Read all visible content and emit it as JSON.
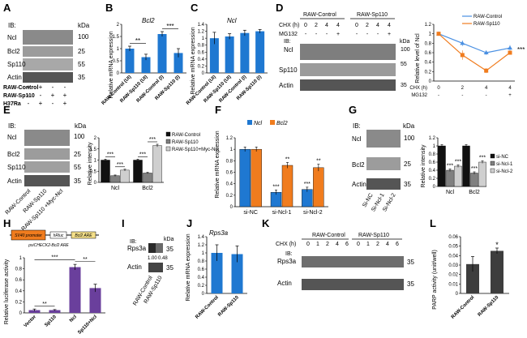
{
  "panels": {
    "A": {
      "letter": "A",
      "ib": "IB:",
      "kda": "kDa",
      "blots": [
        "Ncl",
        "Bcl2",
        "Sp110",
        "Actin"
      ],
      "markers": [
        "100",
        "25",
        "55",
        "35"
      ],
      "rows": [
        "RAW-Control",
        "RAW-Sp110",
        "H37Ra"
      ],
      "signs": [
        [
          "+",
          "+",
          "-",
          "-"
        ],
        [
          "-",
          "-",
          "+",
          "+"
        ],
        [
          "-",
          "+",
          "-",
          "+"
        ]
      ]
    },
    "B": {
      "letter": "B",
      "gene": "Bcl2",
      "ylabel": "Relative mRNA expression",
      "sig": [
        "**",
        "***"
      ]
    },
    "C": {
      "letter": "C",
      "gene": "Ncl",
      "ylabel": "Relative mRNA expression"
    },
    "D": {
      "letter": "D",
      "groups": [
        "RAW-Control",
        "RAW-Sp110"
      ],
      "chx_label": "CHX (h)",
      "chx": [
        "0",
        "2",
        "4",
        "4",
        "0",
        "2",
        "4",
        "4"
      ],
      "mg_label": "MG132",
      "mg": [
        "-",
        "-",
        "-",
        "+",
        "-",
        "-",
        "-",
        "+"
      ],
      "ib": "IB:",
      "kda": "kDa",
      "blots": [
        "Ncl",
        "Sp110",
        "Actin"
      ],
      "markers": [
        "100",
        "55",
        "35"
      ],
      "ylabel": "Relative level of Ncl",
      "sig": "***"
    },
    "E": {
      "letter": "E",
      "ib": "IB:",
      "kda": "kDa",
      "blots": [
        "Ncl",
        "Bcl2",
        "Sp110",
        "Actin"
      ],
      "markers": [
        "100",
        "25",
        "55",
        "35"
      ],
      "lanes": [
        "RAW-Control",
        "RAW-Sp110",
        "RAW-Sp110 +Myc-Ncl"
      ],
      "ylabel": "Relative intensity",
      "sig": [
        "***",
        "***",
        "***",
        "***"
      ]
    },
    "F": {
      "letter": "F",
      "ylabel": "Relative mRNA expression",
      "sig": [
        "***",
        "**",
        "***",
        "**"
      ]
    },
    "G": {
      "letter": "G",
      "ib": "IB:",
      "kda": "kDa",
      "blots": [
        "Ncl",
        "Bcl2",
        "Actin"
      ],
      "markers": [
        "100",
        "25",
        "35"
      ],
      "lanes": [
        "Si-NC",
        "Si-Ncl-1",
        "Si-Ncl-2"
      ],
      "ylabel": "Relative intensity",
      "sig": [
        "***",
        "***",
        "***",
        "***"
      ]
    },
    "H": {
      "letter": "H",
      "construct": [
        "SV40 promoter",
        "hRluc",
        "Bcl2 ARE"
      ],
      "plasmid": "psiCHECK2-Bcl2 ARE",
      "ylabel": "Relative luciferase activity",
      "sig": [
        "**",
        "***",
        "**"
      ]
    },
    "I": {
      "letter": "I",
      "ib": "IB:",
      "kda": "kDa",
      "blots": [
        "Rps3a",
        "Actin"
      ],
      "markers": [
        "35",
        "35"
      ],
      "quant": [
        "1.00",
        "0.48"
      ],
      "lanes": [
        "RAW-Control",
        "RAW-Sp110"
      ]
    },
    "J": {
      "letter": "J",
      "gene": "Rps3a",
      "ylabel": "Relative mRNA expression"
    },
    "K": {
      "letter": "K",
      "groups": [
        "RAW-Control",
        "RAW-Sp110"
      ],
      "chx_label": "CHX (h)",
      "chx": [
        "0",
        "1",
        "2",
        "4",
        "6",
        "0",
        "1",
        "2",
        "4",
        "6"
      ],
      "ib": "IB:",
      "blots": [
        "Rps3a",
        "Actin"
      ],
      "markers": [
        "35",
        "35"
      ]
    },
    "L": {
      "letter": "L",
      "ylabel": "PARP activity (unit/well)",
      "sig": "*"
    }
  },
  "chart_data": [
    {
      "panel": "B",
      "type": "bar",
      "categories": [
        "RAW-Control (UI)",
        "RAW-Sp110 (UI)",
        "RAW-Control (I)",
        "RAW-Sp110 (I)"
      ],
      "values": [
        1.0,
        0.65,
        1.6,
        0.82
      ],
      "errors": [
        0.1,
        0.12,
        0.1,
        0.18
      ],
      "ylim": [
        0,
        2
      ],
      "yticks": [
        0,
        0.5,
        1,
        1.5,
        2
      ],
      "color": "#1f78d1"
    },
    {
      "panel": "C",
      "type": "bar",
      "categories": [
        "RAW-Control (UI)",
        "RAW-Sp110 (UI)",
        "RAW-Control (I)",
        "RAW-Sp110 (I)"
      ],
      "values": [
        1.0,
        1.05,
        1.15,
        1.2
      ],
      "errors": [
        0.17,
        0.08,
        0.08,
        0.05
      ],
      "ylim": [
        0,
        1.4
      ],
      "yticks": [
        0,
        0.2,
        0.4,
        0.6,
        0.8,
        1,
        1.2,
        1.4
      ],
      "color": "#1f78d1"
    },
    {
      "panel": "D",
      "type": "line",
      "x": [
        "0",
        "2",
        "4",
        "4"
      ],
      "ylim": [
        0,
        1.2
      ],
      "yticks": [
        0,
        0.2,
        0.4,
        0.6,
        0.8,
        1,
        1.2
      ],
      "series": [
        {
          "name": "RAW-Control",
          "values": [
            1.0,
            0.8,
            0.6,
            0.7
          ],
          "errors": [
            0.02,
            0.06,
            0.05,
            0.06
          ],
          "color": "#4a90e2",
          "marker": "triangle"
        },
        {
          "name": "RAW-Sp110",
          "values": [
            1.0,
            0.55,
            0.22,
            0.6
          ],
          "errors": [
            0.02,
            0.1,
            0.05,
            0.04
          ],
          "color": "#f07c1e",
          "marker": "square"
        }
      ]
    },
    {
      "panel": "E",
      "type": "bar",
      "categories": [
        "Ncl",
        "Bcl2"
      ],
      "ylim": [
        0,
        2
      ],
      "yticks": [
        0,
        0.5,
        1,
        1.5,
        2
      ],
      "series": [
        {
          "name": "RAW-Control",
          "values": [
            1.0,
            1.0
          ],
          "errors": [
            0.04,
            0.04
          ],
          "color": "#111111"
        },
        {
          "name": "RAW-Sp110",
          "values": [
            0.3,
            0.42
          ],
          "errors": [
            0.03,
            0.03
          ],
          "color": "#808080"
        },
        {
          "name": "RAW-Sp110+Myc-Ncl",
          "values": [
            0.55,
            1.65
          ],
          "errors": [
            0.04,
            0.06
          ],
          "color": "#cfcfcf"
        }
      ]
    },
    {
      "panel": "F",
      "type": "bar",
      "categories": [
        "si-NC",
        "si-Ncl-1",
        "si-Ncl-2"
      ],
      "ylim": [
        0,
        1.2
      ],
      "yticks": [
        0,
        0.2,
        0.4,
        0.6,
        0.8,
        1,
        1.2
      ],
      "series": [
        {
          "name": "Ncl",
          "values": [
            1.0,
            0.25,
            0.3
          ],
          "errors": [
            0.04,
            0.04,
            0.04
          ],
          "color": "#1f78d1"
        },
        {
          "name": "Bcl2",
          "values": [
            1.0,
            0.72,
            0.68
          ],
          "errors": [
            0.04,
            0.05,
            0.06
          ],
          "color": "#f07c1e"
        }
      ]
    },
    {
      "panel": "G",
      "type": "bar",
      "categories": [
        "Ncl",
        "Bcl2"
      ],
      "ylim": [
        0,
        1.2
      ],
      "yticks": [
        0,
        0.2,
        0.4,
        0.6,
        0.8,
        1,
        1.2
      ],
      "series": [
        {
          "name": "si-NC",
          "values": [
            1.0,
            1.0
          ],
          "errors": [
            0.03,
            0.03
          ],
          "color": "#111111"
        },
        {
          "name": "si-Ncl-1",
          "values": [
            0.4,
            0.33
          ],
          "errors": [
            0.03,
            0.03
          ],
          "color": "#808080"
        },
        {
          "name": "si-Ncl-2",
          "values": [
            0.5,
            0.6
          ],
          "errors": [
            0.03,
            0.03
          ],
          "color": "#cfcfcf"
        }
      ]
    },
    {
      "panel": "H",
      "type": "bar",
      "categories": [
        "Vector",
        "Sp110",
        "Ncl",
        "Sp110+Ncl"
      ],
      "values": [
        0.05,
        0.05,
        0.83,
        0.45
      ],
      "errors": [
        0.02,
        0.01,
        0.05,
        0.07
      ],
      "ylim": [
        0,
        1
      ],
      "yticks": [
        0,
        0.2,
        0.4,
        0.6,
        0.8,
        1
      ],
      "color": "#6a3f9c"
    },
    {
      "panel": "J",
      "type": "bar",
      "categories": [
        "RAW-Control",
        "RAW-Sp110"
      ],
      "values": [
        1.0,
        0.97
      ],
      "errors": [
        0.2,
        0.2
      ],
      "ylim": [
        0,
        1.4
      ],
      "yticks": [
        0,
        0.2,
        0.4,
        0.6,
        0.8,
        1,
        1.2,
        1.4
      ],
      "color": "#1f78d1"
    },
    {
      "panel": "L",
      "type": "bar",
      "categories": [
        "RAW-Control",
        "RAW-Sp110"
      ],
      "values": [
        0.031,
        0.045
      ],
      "errors": [
        0.008,
        0.003
      ],
      "ylim": [
        0,
        0.06
      ],
      "yticks": [
        0,
        0.01,
        0.02,
        0.03,
        0.04,
        0.05,
        0.06
      ],
      "color": "#3d3d3d"
    }
  ]
}
